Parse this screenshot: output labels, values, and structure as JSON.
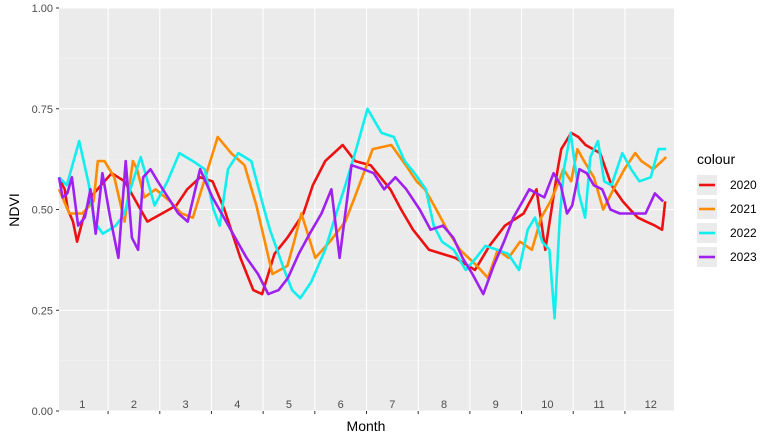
{
  "chart_data": {
    "type": "line",
    "xlabel": "Month",
    "ylabel": "NDVI",
    "ylim": [
      0,
      1
    ],
    "xlim": [
      0.55,
      12.45
    ],
    "y_ticks": [
      "0.00",
      "0.25",
      "0.50",
      "0.75",
      "1.00"
    ],
    "categories": [
      "1",
      "2",
      "3",
      "4",
      "5",
      "6",
      "7",
      "8",
      "9",
      "10",
      "11",
      "12"
    ],
    "grid": true,
    "legend_title": "colour",
    "legend_position": "right",
    "series": [
      {
        "name": "2020",
        "color": "#ee1111",
        "x": [
          0.55,
          0.62,
          0.66,
          0.72,
          0.82,
          0.9,
          1.0,
          1.16,
          1.36,
          1.57,
          1.82,
          2.26,
          2.82,
          3.03,
          3.28,
          3.52,
          3.75,
          4.06,
          4.31,
          4.48,
          4.72,
          4.97,
          5.28,
          5.46,
          5.7,
          6.04,
          6.28,
          6.58,
          6.96,
          7.17,
          7.4,
          7.71,
          8.22,
          8.6,
          8.88,
          9.18,
          9.54,
          9.79,
          9.96,
          10.08,
          10.2,
          10.27,
          10.46,
          10.6,
          10.74,
          11.02,
          11.24,
          11.46,
          11.6,
          11.75,
          11.91,
          12.08,
          12.22,
          12.28
        ],
        "y": [
          0.58,
          0.56,
          0.55,
          0.5,
          0.47,
          0.42,
          0.47,
          0.53,
          0.56,
          0.59,
          0.57,
          0.47,
          0.51,
          0.55,
          0.58,
          0.57,
          0.5,
          0.38,
          0.3,
          0.29,
          0.39,
          0.43,
          0.49,
          0.56,
          0.62,
          0.66,
          0.62,
          0.61,
          0.55,
          0.5,
          0.45,
          0.4,
          0.38,
          0.35,
          0.41,
          0.46,
          0.49,
          0.55,
          0.4,
          0.5,
          0.6,
          0.65,
          0.69,
          0.68,
          0.66,
          0.64,
          0.56,
          0.52,
          0.5,
          0.48,
          0.47,
          0.46,
          0.45,
          0.52
        ]
      },
      {
        "name": "2021",
        "color": "#ff8c00",
        "x": [
          0.55,
          0.75,
          1.0,
          1.22,
          1.3,
          1.43,
          1.62,
          1.82,
          1.98,
          2.06,
          2.2,
          2.42,
          2.7,
          2.92,
          3.14,
          3.62,
          3.88,
          4.14,
          4.37,
          4.68,
          4.97,
          5.1,
          5.24,
          5.51,
          5.79,
          6.09,
          6.3,
          6.62,
          6.98,
          7.26,
          7.47,
          7.63,
          7.85,
          8.06,
          8.31,
          8.64,
          8.85,
          9.04,
          9.25,
          9.47,
          9.7,
          9.88,
          10.06,
          10.16,
          10.31,
          10.46,
          10.58,
          10.71,
          10.9,
          11.08,
          11.28,
          11.49,
          11.7,
          11.82,
          12.05,
          12.3
        ],
        "y": [
          0.55,
          0.49,
          0.49,
          0.52,
          0.62,
          0.62,
          0.58,
          0.47,
          0.62,
          0.6,
          0.53,
          0.55,
          0.52,
          0.49,
          0.48,
          0.68,
          0.64,
          0.61,
          0.51,
          0.34,
          0.36,
          0.42,
          0.49,
          0.38,
          0.42,
          0.47,
          0.54,
          0.65,
          0.66,
          0.61,
          0.57,
          0.55,
          0.5,
          0.45,
          0.4,
          0.36,
          0.33,
          0.4,
          0.38,
          0.42,
          0.4,
          0.48,
          0.52,
          0.55,
          0.6,
          0.57,
          0.65,
          0.62,
          0.58,
          0.5,
          0.55,
          0.6,
          0.64,
          0.62,
          0.6,
          0.63
        ]
      },
      {
        "name": "2022",
        "color": "#11eeee",
        "x": [
          0.55,
          0.7,
          0.94,
          1.13,
          1.23,
          1.4,
          1.65,
          1.82,
          1.93,
          2.13,
          2.4,
          2.65,
          2.88,
          3.14,
          3.37,
          3.54,
          3.66,
          3.82,
          4.02,
          4.27,
          4.52,
          4.63,
          4.77,
          4.91,
          5.06,
          5.22,
          5.43,
          5.7,
          5.89,
          6.09,
          6.3,
          6.52,
          6.79,
          7.03,
          7.24,
          7.43,
          7.65,
          7.8,
          7.96,
          8.19,
          8.42,
          8.62,
          8.8,
          9.03,
          9.24,
          9.45,
          9.62,
          9.76,
          9.9,
          10.04,
          10.14,
          10.24,
          10.32,
          10.45,
          10.61,
          10.73,
          10.83,
          10.98,
          11.1,
          11.24,
          11.45,
          11.62,
          11.78,
          12.0,
          12.15,
          12.3
        ],
        "y": [
          0.58,
          0.56,
          0.67,
          0.56,
          0.47,
          0.44,
          0.46,
          0.49,
          0.55,
          0.63,
          0.51,
          0.57,
          0.64,
          0.62,
          0.6,
          0.5,
          0.46,
          0.6,
          0.64,
          0.62,
          0.5,
          0.45,
          0.4,
          0.35,
          0.3,
          0.28,
          0.32,
          0.4,
          0.48,
          0.56,
          0.65,
          0.75,
          0.69,
          0.68,
          0.62,
          0.59,
          0.55,
          0.46,
          0.42,
          0.4,
          0.35,
          0.38,
          0.41,
          0.4,
          0.39,
          0.35,
          0.45,
          0.48,
          0.42,
          0.4,
          0.23,
          0.48,
          0.6,
          0.69,
          0.54,
          0.48,
          0.63,
          0.67,
          0.57,
          0.56,
          0.64,
          0.6,
          0.57,
          0.58,
          0.65,
          0.65
        ]
      },
      {
        "name": "2023",
        "color": "#a020f0",
        "x": [
          0.55,
          0.62,
          0.71,
          0.8,
          0.92,
          1.05,
          1.16,
          1.26,
          1.39,
          1.54,
          1.7,
          1.84,
          1.96,
          2.08,
          2.18,
          2.32,
          2.46,
          2.66,
          2.86,
          3.04,
          3.28,
          3.52,
          3.74,
          3.96,
          4.18,
          4.4,
          4.6,
          4.8,
          4.98,
          5.19,
          5.4,
          5.63,
          5.82,
          5.98,
          6.21,
          6.44,
          6.64,
          6.84,
          7.06,
          7.27,
          7.53,
          7.74,
          7.98,
          8.18,
          8.36,
          8.55,
          8.76,
          8.96,
          9.16,
          9.34,
          9.52,
          9.65,
          9.79,
          9.94,
          10.12,
          10.26,
          10.38,
          10.48,
          10.62,
          10.76,
          10.9,
          11.06,
          11.22,
          11.4,
          11.56,
          11.72,
          11.9,
          12.08,
          12.24
        ],
        "y": [
          0.58,
          0.53,
          0.54,
          0.58,
          0.46,
          0.48,
          0.55,
          0.44,
          0.59,
          0.48,
          0.38,
          0.62,
          0.43,
          0.4,
          0.58,
          0.6,
          0.57,
          0.53,
          0.49,
          0.47,
          0.6,
          0.53,
          0.48,
          0.43,
          0.38,
          0.34,
          0.29,
          0.3,
          0.33,
          0.39,
          0.44,
          0.49,
          0.55,
          0.38,
          0.61,
          0.6,
          0.59,
          0.55,
          0.58,
          0.55,
          0.5,
          0.45,
          0.46,
          0.43,
          0.38,
          0.34,
          0.29,
          0.36,
          0.42,
          0.48,
          0.52,
          0.55,
          0.54,
          0.53,
          0.59,
          0.56,
          0.49,
          0.51,
          0.6,
          0.59,
          0.56,
          0.55,
          0.5,
          0.49,
          0.49,
          0.49,
          0.49,
          0.54,
          0.52
        ]
      }
    ]
  }
}
